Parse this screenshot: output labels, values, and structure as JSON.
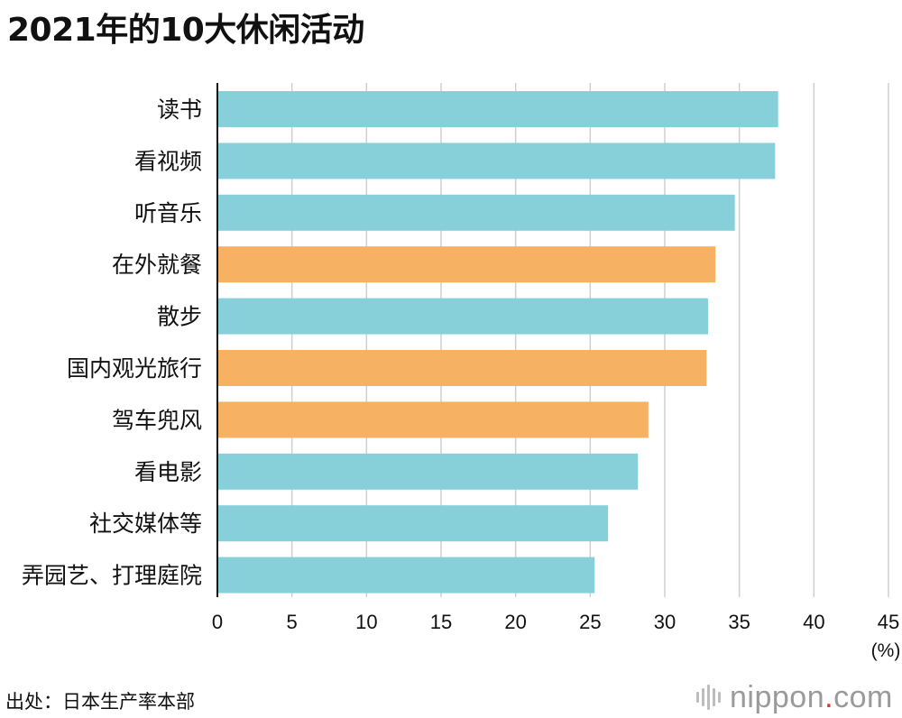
{
  "chart_data": {
    "type": "bar",
    "orientation": "horizontal",
    "title": "2021年的10大休闲活动",
    "categories": [
      "读书",
      "看视频",
      "听音乐",
      "在外就餐",
      "散步",
      "国内观光旅行",
      "驾车兜风",
      "看电影",
      "社交媒体等",
      "弄园艺、打理庭院"
    ],
    "values": [
      37.6,
      37.4,
      34.7,
      33.4,
      32.9,
      32.8,
      28.9,
      28.2,
      26.2,
      25.3
    ],
    "highlight": [
      false,
      false,
      false,
      true,
      false,
      true,
      true,
      false,
      false,
      false
    ],
    "colors": {
      "default": "#87d0da",
      "highlight": "#f6b262"
    },
    "xlim": [
      0,
      45
    ],
    "xticks": [
      "0",
      "5",
      "10",
      "15",
      "20",
      "25",
      "30",
      "35",
      "40",
      "45"
    ],
    "xunit": "(%)",
    "grid": true
  },
  "source": "出处：日本生产率本部",
  "logo": {
    "name": "nippon",
    "dot": ".",
    "suffix": "com"
  }
}
